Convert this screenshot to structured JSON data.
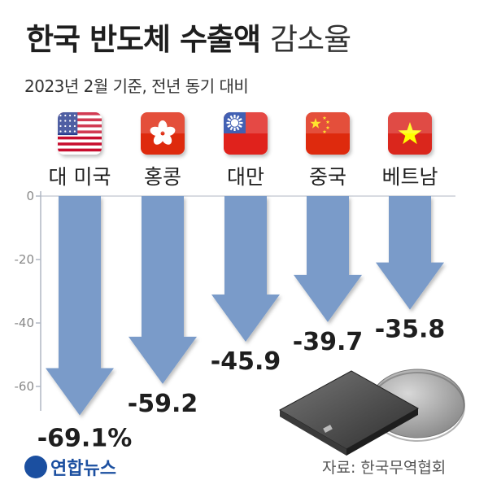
{
  "title": {
    "main": "한국 반도체 수출액",
    "sub": "감소율"
  },
  "subtitle": "2023년 2월 기준, 전년 동기 대비",
  "source": "자료: 한국무역협회",
  "logo_text": "연합뉴스",
  "colors": {
    "arrow": "#7a9bc9",
    "axis": "#b0b7c3",
    "text": "#1e1e1e"
  },
  "chart_data": {
    "type": "bar",
    "orientation": "vertical-down",
    "categories": [
      "대 미국",
      "홍콩",
      "대만",
      "중국",
      "베트남"
    ],
    "flags": [
      "usa-flag-icon",
      "hongkong-flag-icon",
      "taiwan-flag-icon",
      "china-flag-icon",
      "vietnam-flag-icon"
    ],
    "values": [
      -69.1,
      -59.2,
      -45.9,
      -39.7,
      -35.8
    ],
    "value_labels": [
      "-69.1%",
      "-59.2",
      "-45.9",
      "-39.7",
      "-35.8"
    ],
    "ylim": [
      -70,
      0
    ],
    "yticks": [
      0,
      -20,
      -40,
      -60
    ],
    "grid": false
  }
}
